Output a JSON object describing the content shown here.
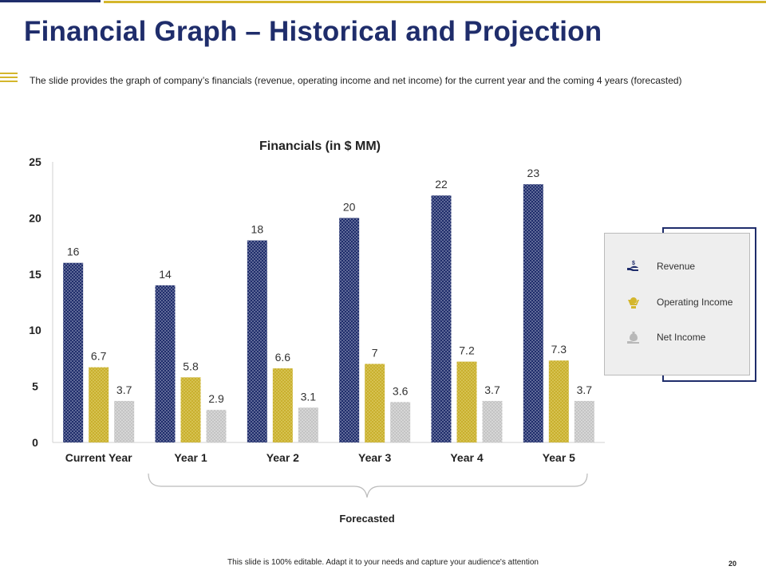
{
  "slide": {
    "title": "Financial Graph – Historical and Projection",
    "subtitle": "The slide provides  the graph  of company’s financials (revenue,  operating income and net income) for the current year and the coming 4 years (forecasted)",
    "forecast_label": "Forecasted",
    "footer": "This slide is 100% editable.  Adapt it to your needs and capture your audience's attention",
    "page_number": "20"
  },
  "colors": {
    "navy": "#1f2d6b",
    "gold": "#d4b62c",
    "light_gray": "#c8c8c8"
  },
  "legend": {
    "items": [
      {
        "label": "Revenue",
        "icon": "hand-dollar-icon"
      },
      {
        "label": "Operating Income",
        "icon": "hands-coin-icon"
      },
      {
        "label": "Net Income",
        "icon": "hand-money-bag-icon"
      }
    ]
  },
  "chart_data": {
    "type": "bar",
    "title": "Financials (in $ MM)",
    "categories": [
      "Current Year",
      "Year 1",
      "Year 2",
      "Year 3",
      "Year 4",
      "Year 5"
    ],
    "series": [
      {
        "name": "Revenue",
        "values": [
          16,
          14,
          18,
          20,
          22,
          23
        ],
        "labels": [
          "16",
          "14",
          "18",
          "20",
          "22",
          "23"
        ]
      },
      {
        "name": "Operating Income",
        "values": [
          6.7,
          5.8,
          6.6,
          7,
          7.2,
          7.3
        ],
        "labels": [
          "6.7",
          "5.8",
          "6.6",
          "7",
          "7.2",
          "7.3"
        ]
      },
      {
        "name": "Net Income",
        "values": [
          3.7,
          2.9,
          3.1,
          3.6,
          3.7,
          3.7
        ],
        "labels": [
          "3.7",
          "2.9",
          "3.1",
          "3.6",
          "3.7",
          "3.7"
        ]
      }
    ],
    "yticks": [
      "0",
      "5",
      "10",
      "15",
      "20",
      "25"
    ],
    "ylim": [
      0,
      25
    ],
    "xlabel": "",
    "ylabel": "",
    "legend_position": "right",
    "grid": false
  }
}
